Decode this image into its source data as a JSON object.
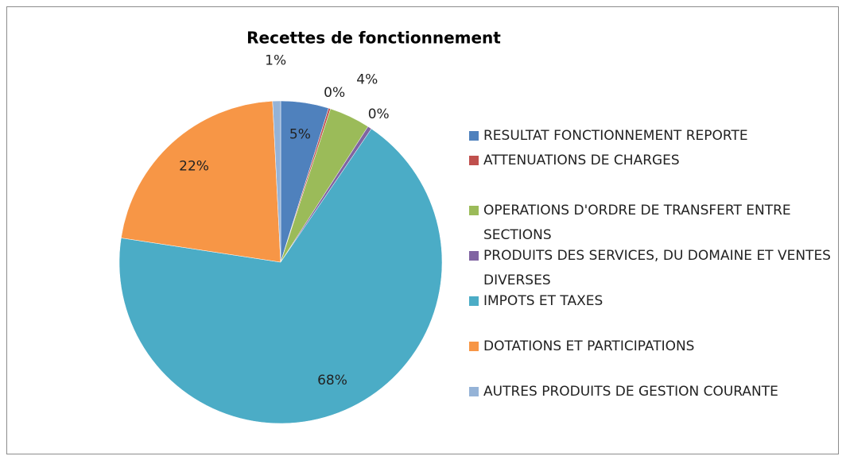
{
  "chart_data": {
    "type": "pie",
    "title": "Recettes de fonctionnement",
    "categories": [
      "RESULTAT FONCTIONNEMENT REPORTE",
      "ATTENUATIONS DE CHARGES",
      "OPERATIONS D'ORDRE DE TRANSFERT ENTRE SECTIONS",
      "PRODUITS DES SERVICES, DU DOMAINE ET VENTES DIVERSES",
      "IMPOTS ET TAXES",
      "DOTATIONS ET PARTICIPATIONS",
      "AUTRES PRODUITS DE GESTION COURANTE"
    ],
    "values": [
      4.8,
      0.2,
      4.1,
      0.4,
      67.9,
      21.8,
      0.8
    ],
    "value_labels": [
      "5%",
      "0%",
      "4%",
      "0%",
      "68%",
      "22%",
      "1%"
    ],
    "colors": [
      "#4f81bd",
      "#c0504d",
      "#9bbb59",
      "#8064a2",
      "#4bacc6",
      "#f79646",
      "#95b3d7"
    ],
    "legend": "right"
  }
}
